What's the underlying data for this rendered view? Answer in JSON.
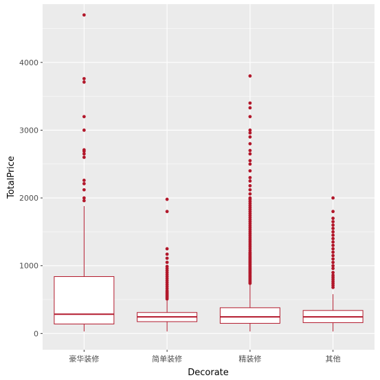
{
  "chart_data": {
    "type": "boxplot",
    "xlabel": "Decorate",
    "ylabel": "TotalPrice",
    "ylim": [
      -240,
      4860
    ],
    "y_ticks": [
      0,
      1000,
      2000,
      3000,
      4000
    ],
    "grid": true,
    "panel_color": "#ebebeb",
    "grid_color": "#ffffff",
    "box_color": "#b2182b",
    "categories": [
      "豪华装修",
      "简单装修",
      "精装修",
      "其他"
    ],
    "boxes": [
      {
        "category": "豪华装修",
        "min": 30,
        "q1": 140,
        "median": 285,
        "q3": 840,
        "max": 1880,
        "outliers": [
          1960,
          2000,
          2120,
          2210,
          2260,
          2600,
          2650,
          2690,
          2710,
          3000,
          3200,
          3710,
          3760,
          4700
        ]
      },
      {
        "category": "简单装修",
        "min": 30,
        "q1": 175,
        "median": 245,
        "q3": 310,
        "max": 490,
        "outliers": [
          510,
          530,
          550,
          570,
          590,
          610,
          630,
          660,
          690,
          720,
          750,
          780,
          810,
          840,
          870,
          900,
          930,
          960,
          990,
          1050,
          1110,
          1170,
          1250,
          1800,
          1980
        ]
      },
      {
        "category": "精装修",
        "min": 30,
        "q1": 150,
        "median": 245,
        "q3": 380,
        "max": 720,
        "outliers": [
          740,
          760,
          780,
          800,
          820,
          840,
          860,
          880,
          900,
          920,
          940,
          960,
          980,
          1000,
          1020,
          1040,
          1060,
          1080,
          1100,
          1120,
          1140,
          1160,
          1180,
          1200,
          1230,
          1260,
          1290,
          1320,
          1350,
          1380,
          1410,
          1440,
          1470,
          1500,
          1530,
          1560,
          1590,
          1620,
          1650,
          1680,
          1710,
          1740,
          1770,
          1800,
          1830,
          1860,
          1890,
          1920,
          1950,
          1980,
          2000,
          2060,
          2120,
          2180,
          2250,
          2300,
          2400,
          2500,
          2550,
          2650,
          2700,
          2800,
          2900,
          2960,
          3000,
          3200,
          3330,
          3400,
          3800
        ]
      },
      {
        "category": "其他",
        "min": 30,
        "q1": 160,
        "median": 245,
        "q3": 340,
        "max": 580,
        "outliers": [
          680,
          710,
          740,
          770,
          800,
          830,
          860,
          900,
          960,
          1000,
          1050,
          1100,
          1150,
          1200,
          1250,
          1300,
          1350,
          1400,
          1450,
          1500,
          1550,
          1600,
          1650,
          1700,
          1800,
          2000
        ]
      }
    ]
  }
}
